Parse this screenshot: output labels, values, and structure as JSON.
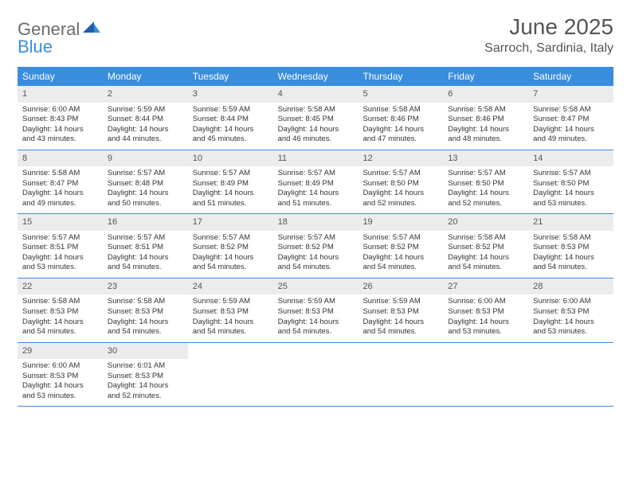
{
  "brand": {
    "part1": "General",
    "part2": "Blue"
  },
  "title": {
    "month": "June 2025",
    "location": "Sarroch, Sardinia, Italy"
  },
  "colors": {
    "accent": "#3a8dde",
    "header_text": "#ffffff",
    "band_bg": "#ececec",
    "text": "#333333",
    "muted": "#555555",
    "logo_gray": "#6b6b6b"
  },
  "day_names": [
    "Sunday",
    "Monday",
    "Tuesday",
    "Wednesday",
    "Thursday",
    "Friday",
    "Saturday"
  ],
  "weeks": [
    [
      {
        "n": "1",
        "sunrise": "6:00 AM",
        "sunset": "8:43 PM",
        "daylight": "14 hours and 43 minutes."
      },
      {
        "n": "2",
        "sunrise": "5:59 AM",
        "sunset": "8:44 PM",
        "daylight": "14 hours and 44 minutes."
      },
      {
        "n": "3",
        "sunrise": "5:59 AM",
        "sunset": "8:44 PM",
        "daylight": "14 hours and 45 minutes."
      },
      {
        "n": "4",
        "sunrise": "5:58 AM",
        "sunset": "8:45 PM",
        "daylight": "14 hours and 46 minutes."
      },
      {
        "n": "5",
        "sunrise": "5:58 AM",
        "sunset": "8:46 PM",
        "daylight": "14 hours and 47 minutes."
      },
      {
        "n": "6",
        "sunrise": "5:58 AM",
        "sunset": "8:46 PM",
        "daylight": "14 hours and 48 minutes."
      },
      {
        "n": "7",
        "sunrise": "5:58 AM",
        "sunset": "8:47 PM",
        "daylight": "14 hours and 49 minutes."
      }
    ],
    [
      {
        "n": "8",
        "sunrise": "5:58 AM",
        "sunset": "8:47 PM",
        "daylight": "14 hours and 49 minutes."
      },
      {
        "n": "9",
        "sunrise": "5:57 AM",
        "sunset": "8:48 PM",
        "daylight": "14 hours and 50 minutes."
      },
      {
        "n": "10",
        "sunrise": "5:57 AM",
        "sunset": "8:49 PM",
        "daylight": "14 hours and 51 minutes."
      },
      {
        "n": "11",
        "sunrise": "5:57 AM",
        "sunset": "8:49 PM",
        "daylight": "14 hours and 51 minutes."
      },
      {
        "n": "12",
        "sunrise": "5:57 AM",
        "sunset": "8:50 PM",
        "daylight": "14 hours and 52 minutes."
      },
      {
        "n": "13",
        "sunrise": "5:57 AM",
        "sunset": "8:50 PM",
        "daylight": "14 hours and 52 minutes."
      },
      {
        "n": "14",
        "sunrise": "5:57 AM",
        "sunset": "8:50 PM",
        "daylight": "14 hours and 53 minutes."
      }
    ],
    [
      {
        "n": "15",
        "sunrise": "5:57 AM",
        "sunset": "8:51 PM",
        "daylight": "14 hours and 53 minutes."
      },
      {
        "n": "16",
        "sunrise": "5:57 AM",
        "sunset": "8:51 PM",
        "daylight": "14 hours and 54 minutes."
      },
      {
        "n": "17",
        "sunrise": "5:57 AM",
        "sunset": "8:52 PM",
        "daylight": "14 hours and 54 minutes."
      },
      {
        "n": "18",
        "sunrise": "5:57 AM",
        "sunset": "8:52 PM",
        "daylight": "14 hours and 54 minutes."
      },
      {
        "n": "19",
        "sunrise": "5:57 AM",
        "sunset": "8:52 PM",
        "daylight": "14 hours and 54 minutes."
      },
      {
        "n": "20",
        "sunrise": "5:58 AM",
        "sunset": "8:52 PM",
        "daylight": "14 hours and 54 minutes."
      },
      {
        "n": "21",
        "sunrise": "5:58 AM",
        "sunset": "8:53 PM",
        "daylight": "14 hours and 54 minutes."
      }
    ],
    [
      {
        "n": "22",
        "sunrise": "5:58 AM",
        "sunset": "8:53 PM",
        "daylight": "14 hours and 54 minutes."
      },
      {
        "n": "23",
        "sunrise": "5:58 AM",
        "sunset": "8:53 PM",
        "daylight": "14 hours and 54 minutes."
      },
      {
        "n": "24",
        "sunrise": "5:59 AM",
        "sunset": "8:53 PM",
        "daylight": "14 hours and 54 minutes."
      },
      {
        "n": "25",
        "sunrise": "5:59 AM",
        "sunset": "8:53 PM",
        "daylight": "14 hours and 54 minutes."
      },
      {
        "n": "26",
        "sunrise": "5:59 AM",
        "sunset": "8:53 PM",
        "daylight": "14 hours and 54 minutes."
      },
      {
        "n": "27",
        "sunrise": "6:00 AM",
        "sunset": "8:53 PM",
        "daylight": "14 hours and 53 minutes."
      },
      {
        "n": "28",
        "sunrise": "6:00 AM",
        "sunset": "8:53 PM",
        "daylight": "14 hours and 53 minutes."
      }
    ],
    [
      {
        "n": "29",
        "sunrise": "6:00 AM",
        "sunset": "8:53 PM",
        "daylight": "14 hours and 53 minutes."
      },
      {
        "n": "30",
        "sunrise": "6:01 AM",
        "sunset": "8:53 PM",
        "daylight": "14 hours and 52 minutes."
      },
      null,
      null,
      null,
      null,
      null
    ]
  ],
  "labels": {
    "sunrise": "Sunrise: ",
    "sunset": "Sunset: ",
    "daylight": "Daylight: "
  }
}
